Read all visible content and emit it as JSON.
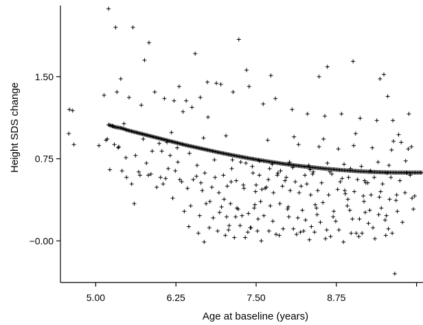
{
  "chart_data": {
    "type": "scatter",
    "title": "",
    "xlabel": "Age at baseline (years)",
    "ylabel": "Height SDS change",
    "xlim": [
      4.45,
      10.1
    ],
    "ylim": [
      -0.38,
      2.2
    ],
    "x_ticks": [
      {
        "value": 5.0,
        "label": "5.00"
      },
      {
        "value": 6.25,
        "label": "6.25"
      },
      {
        "value": 7.5,
        "label": "7.50"
      },
      {
        "value": 8.75,
        "label": "8.75"
      },
      {
        "value": 10.0,
        "label": ""
      }
    ],
    "y_ticks": [
      {
        "value": 0.0,
        "label": "−0.00"
      },
      {
        "value": 0.75,
        "label": "0.75"
      },
      {
        "value": 1.5,
        "label": "1.50"
      }
    ],
    "grid": false,
    "legend": "none",
    "point_marker": "+",
    "color": "#000000",
    "points": {
      "x": [
        4.59,
        4.64,
        4.58,
        4.66,
        5.2,
        5.31,
        5.39,
        5.44,
        5.58,
        5.76,
        5.83,
        6.3,
        6.55,
        6.88,
        7.23,
        7.35,
        7.73,
        8.48,
        8.61,
        9.01,
        9.43,
        9.49,
        9.55,
        5.13,
        5.27,
        5.33,
        5.52,
        5.71,
        5.92,
        6.07,
        6.22,
        6.41,
        6.63,
        6.74,
        6.95,
        7.14,
        7.39,
        7.61,
        7.8,
        8.06,
        8.3,
        8.57,
        8.83,
        9.12,
        9.38,
        9.63,
        9.87,
        5.18,
        5.29,
        5.35,
        5.47,
        5.62,
        5.79,
        5.88,
        6.03,
        6.16,
        6.28,
        6.46,
        6.58,
        6.7,
        6.85,
        6.99,
        7.12,
        7.26,
        7.44,
        7.55,
        7.69,
        7.84,
        7.97,
        8.11,
        8.26,
        8.39,
        8.52,
        8.68,
        8.81,
        8.94,
        9.08,
        9.21,
        9.34,
        9.47,
        9.6,
        9.74,
        9.9,
        5.22,
        5.41,
        5.56,
        5.69,
        5.86,
        6.01,
        6.13,
        6.34,
        6.52,
        6.66,
        6.81,
        6.92,
        7.05,
        7.19,
        7.31,
        7.49,
        7.64,
        7.77,
        7.91,
        8.03,
        8.17,
        8.35,
        8.46,
        8.63,
        8.77,
        8.89,
        9.03,
        9.17,
        9.29,
        9.44,
        9.58,
        9.69,
        9.82,
        9.97,
        5.6,
        5.95,
        6.2,
        6.48,
        6.72,
        6.96,
        7.22,
        7.47,
        7.72,
        7.99,
        8.22,
        8.44,
        8.71,
        8.96,
        9.2,
        9.45,
        9.7,
        9.95,
        6.38,
        6.62,
        6.83,
        7.04,
        7.28,
        7.53,
        7.76,
        8.01,
        8.27,
        8.5,
        8.74,
        9.0,
        9.25,
        9.51,
        9.78,
        6.45,
        6.77,
        7.08,
        7.42,
        7.7,
        8.08,
        8.41,
        8.79,
        9.15,
        9.56,
        6.6,
        7.02,
        7.37,
        7.81,
        8.24,
        8.66,
        9.06,
        9.52,
        6.69,
        7.16,
        7.58,
        8.13,
        8.58,
        9.1,
        9.62,
        6.9,
        7.33,
        7.86,
        8.33,
        8.86,
        9.35,
        9.88,
        6.5,
        6.36,
        6.75,
        6.78,
        7.0,
        7.1,
        7.2,
        7.48,
        7.57,
        7.87,
        8.0,
        8.42,
        8.54,
        8.92,
        9.27,
        9.66,
        7.07,
        7.25,
        7.41,
        7.52,
        7.92,
        8.19,
        8.36,
        8.6,
        8.98,
        9.32,
        9.76,
        5.05,
        5.16,
        5.36,
        5.74,
        5.99,
        6.11,
        6.27,
        6.43,
        7.3,
        7.59,
        7.66,
        8.2,
        8.88,
        9.41,
        6.93,
        7.18,
        7.38,
        7.62,
        8.15,
        8.45,
        8.7,
        9.11,
        9.53,
        9.85,
        5.48,
        5.67,
        5.82,
        6.09,
        6.24,
        6.57,
        7.45,
        7.83,
        8.38,
        9.19,
        6.05,
        6.31,
        6.64,
        6.86,
        7.11,
        7.5,
        7.95,
        8.29,
        8.84,
        9.24,
        9.72,
        6.18,
        6.68,
        7.03,
        7.68,
        8.09,
        8.55,
        9.05,
        9.64,
        7.13,
        7.34,
        7.55,
        7.75,
        8.02,
        8.32,
        8.61,
        8.87,
        9.14,
        9.4,
        9.57,
        9.83,
        8.16,
        8.48,
        8.78,
        9.02,
        9.31,
        9.61,
        9.92,
        8.93,
        9.18,
        9.42,
        9.68,
        9.93,
        7.71,
        7.88,
        8.07,
        8.34,
        8.65,
        8.97,
        9.28,
        9.54
      ],
      "y": [
        1.2,
        1.19,
        0.98,
        0.88,
        2.12,
        1.95,
        1.48,
        1.07,
        1.95,
        1.65,
        1.81,
        1.41,
        1.71,
        1.44,
        1.84,
        1.56,
        1.51,
        1.5,
        1.59,
        1.64,
        1.48,
        1.52,
        1.32,
        1.33,
        1.05,
        1.36,
        1.31,
        1.24,
        1.36,
        1.3,
        1.28,
        1.28,
        1.31,
        1.45,
        1.43,
        1.36,
        1.41,
        1.25,
        1.3,
        1.2,
        1.16,
        1.14,
        1.16,
        1.12,
        1.1,
        1.1,
        0.84,
        0.93,
        0.88,
        0.85,
        0.76,
        0.78,
        0.71,
        0.82,
        0.82,
        0.78,
        0.72,
        0.8,
        0.69,
        0.62,
        0.74,
        0.6,
        0.66,
        0.72,
        0.68,
        0.6,
        0.56,
        0.62,
        0.58,
        0.54,
        0.6,
        0.63,
        0.53,
        0.61,
        0.54,
        0.58,
        0.56,
        0.53,
        0.58,
        0.52,
        0.58,
        0.55,
        0.6,
        0.65,
        0.64,
        0.52,
        0.6,
        0.61,
        0.58,
        0.66,
        0.54,
        0.56,
        0.46,
        0.49,
        0.44,
        0.5,
        0.55,
        0.48,
        0.45,
        0.48,
        0.44,
        0.5,
        0.46,
        0.44,
        0.42,
        0.46,
        0.42,
        0.47,
        0.43,
        0.45,
        0.41,
        0.42,
        0.45,
        0.38,
        0.42,
        0.44,
        0.41,
        0.34,
        0.49,
        0.39,
        0.32,
        0.34,
        0.31,
        0.29,
        0.3,
        0.32,
        0.29,
        0.28,
        0.3,
        0.27,
        0.28,
        0.26,
        0.3,
        0.27,
        0.29,
        0.27,
        0.23,
        0.21,
        0.22,
        0.23,
        0.2,
        0.18,
        0.22,
        0.19,
        0.17,
        0.18,
        0.2,
        0.16,
        0.19,
        0.17,
        0.13,
        0.12,
        0.14,
        0.12,
        0.09,
        0.11,
        0.08,
        0.1,
        0.07,
        0.11,
        0.07,
        0.05,
        0.08,
        0.06,
        0.09,
        0.04,
        0.07,
        0.05,
        -0.01,
        0.03,
        0.0,
        0.06,
        0.02,
        0.04,
        0.07,
        0.09,
        0.03,
        0.05,
        0.01,
        -0.01,
        0.02,
        1.16,
        1.22,
        1.18,
        1.13,
        0.36,
        0.38,
        0.34,
        0.3,
        0.33,
        0.36,
        0.34,
        0.31,
        0.33,
        0.35,
        0.32,
        0.28,
        -0.3,
        0.1,
        0.14,
        0.12,
        0.09,
        0.11,
        0.08,
        0.13,
        0.1,
        0.07,
        0.12,
        0.9,
        0.87,
        0.92,
        0.86,
        0.93,
        0.89,
        0.9,
        0.85,
        0.48,
        0.51,
        0.47,
        0.49,
        0.5,
        0.46,
        0.24,
        0.26,
        0.22,
        0.25,
        0.23,
        0.21,
        0.24,
        0.22,
        0.2,
        0.23,
        0.62,
        0.58,
        0.63,
        0.6,
        0.57,
        0.64,
        0.59,
        0.62,
        0.6,
        0.61,
        0.55,
        0.52,
        0.56,
        0.53,
        0.58,
        0.54,
        0.51,
        0.55,
        0.52,
        0.57,
        0.53,
        0.97,
        0.99,
        0.94,
        0.96,
        0.92,
        0.95,
        0.93,
        0.98,
        0.91,
        0.74,
        0.71,
        0.73,
        0.7,
        0.72,
        0.69,
        0.71,
        0.7,
        0.68,
        0.72,
        0.69,
        0.73,
        0.88,
        0.86,
        0.84,
        0.87,
        0.85,
        0.83,
        0.86,
        0.38,
        0.36,
        0.4,
        0.37,
        0.39,
        0.66,
        0.64,
        0.67,
        0.65,
        0.63,
        0.66,
        0.64,
        0.62
      ]
    },
    "series": [
      {
        "type": "line",
        "x": [
          5.2,
          5.3,
          5.4,
          5.5,
          5.6,
          5.7,
          5.8,
          5.9,
          6.0,
          6.1,
          6.2,
          6.3,
          6.4,
          6.5,
          6.6,
          6.7,
          6.8,
          6.9,
          7.0,
          7.1,
          7.2,
          7.3,
          7.4,
          7.5,
          7.6,
          7.7,
          7.8,
          7.9,
          8.0,
          8.1,
          8.2,
          8.3,
          8.4,
          8.5,
          8.6,
          8.7,
          8.8,
          8.9,
          9.0,
          9.1,
          9.2,
          9.3,
          9.4,
          9.5,
          9.6,
          9.7,
          9.8,
          9.9,
          10.0,
          10.1
        ],
        "y": [
          1.06,
          1.04,
          1.03,
          1.01,
          0.995,
          0.98,
          0.965,
          0.95,
          0.935,
          0.92,
          0.905,
          0.89,
          0.875,
          0.862,
          0.849,
          0.836,
          0.823,
          0.81,
          0.798,
          0.786,
          0.775,
          0.764,
          0.753,
          0.743,
          0.733,
          0.724,
          0.715,
          0.706,
          0.698,
          0.69,
          0.683,
          0.676,
          0.67,
          0.664,
          0.658,
          0.653,
          0.648,
          0.644,
          0.64,
          0.636,
          0.633,
          0.63,
          0.628,
          0.626,
          0.625,
          0.624,
          0.624,
          0.624,
          0.624,
          0.624
        ]
      }
    ]
  }
}
